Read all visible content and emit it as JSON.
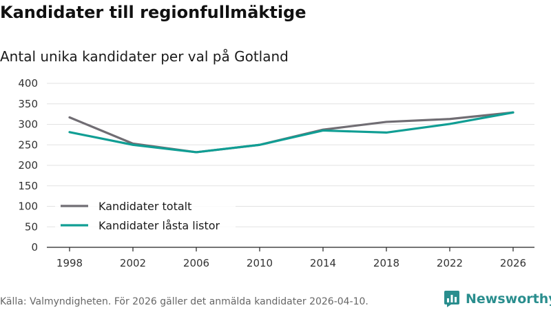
{
  "header": {
    "title": "Kandidater till regionfullmäktige",
    "subtitle": "Antal unika kandidater per val på Gotland"
  },
  "footer": {
    "source": "Källa: Valmyndigheten. För 2026 gäller det anmälda kandidater 2026-04-10.",
    "brand": "Newsworthy"
  },
  "colors": {
    "total": "#706d73",
    "locked": "#109e94",
    "grid": "#e2e2e2",
    "axis": "#222222",
    "brand": "#2a8e8e"
  },
  "icons": {
    "brand_logo": "newsworthy-logo-icon"
  },
  "chart_data": {
    "type": "line",
    "title": "Kandidater till regionfullmäktige",
    "subtitle": "Antal unika kandidater per val på Gotland",
    "xlabel": "",
    "ylabel": "",
    "x": [
      "1998",
      "2002",
      "2006",
      "2010",
      "2014",
      "2018",
      "2022",
      "2026"
    ],
    "ylim": [
      0,
      400
    ],
    "yticks": [
      "0",
      "50",
      "100",
      "150",
      "200",
      "250",
      "300",
      "350",
      "400"
    ],
    "grid": true,
    "legend_position": "bottom-left",
    "series": [
      {
        "name": "Kandidater totalt",
        "key": "total",
        "values": [
          317,
          253,
          232,
          250,
          287,
          306,
          313,
          329
        ]
      },
      {
        "name": "Kandidater låsta listor",
        "key": "locked",
        "values": [
          281,
          250,
          232,
          250,
          285,
          280,
          301,
          329
        ]
      }
    ]
  }
}
